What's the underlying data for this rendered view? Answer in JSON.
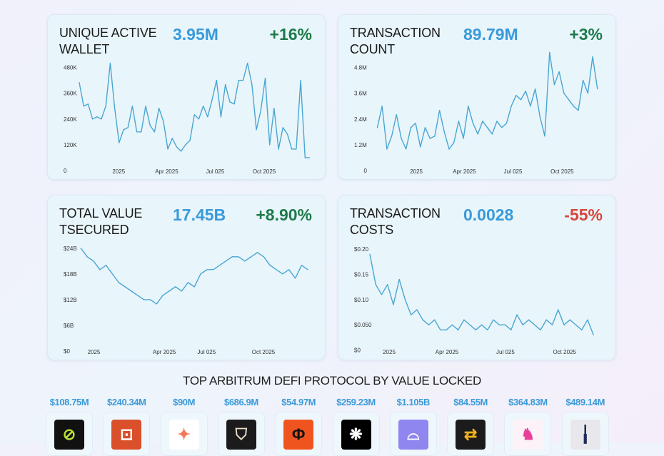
{
  "colors": {
    "value": "#3a9ad9",
    "positive": "#1e7a4a",
    "negative": "#d9453a",
    "line": "#4aa6d2"
  },
  "chart_data": [
    {
      "type": "line",
      "title": "UNIQUE ACTIVE WALLET",
      "headline": "3.95M",
      "change": "+16%",
      "change_dir": "positive",
      "ylim": [
        0,
        505
      ],
      "xlim": [
        -74,
        360
      ],
      "x_unit": "days since 2025-01-01",
      "y_ticks": [
        {
          "label": "0",
          "value": 0
        },
        {
          "label": "120K",
          "value": 120
        },
        {
          "label": "240K",
          "value": 240
        },
        {
          "label": "360K",
          "value": 360
        },
        {
          "label": "480K",
          "value": 480
        }
      ],
      "x_ticks": [
        {
          "label": "2025",
          "day": 0
        },
        {
          "label": "Apr 2025",
          "day": 90
        },
        {
          "label": "Jul 025",
          "day": 181
        },
        {
          "label": "Oct 2025",
          "day": 273
        }
      ],
      "x_range": [
        -74,
        358
      ],
      "values": [
        410,
        300,
        310,
        240,
        250,
        240,
        300,
        500,
        290,
        130,
        190,
        200,
        300,
        180,
        180,
        300,
        210,
        180,
        290,
        230,
        100,
        150,
        110,
        90,
        120,
        140,
        260,
        240,
        300,
        250,
        330,
        420,
        250,
        400,
        320,
        310,
        420,
        420,
        500,
        400,
        190,
        280,
        430,
        120,
        290,
        100,
        200,
        170,
        100,
        100,
        420,
        60,
        60
      ]
    },
    {
      "type": "line",
      "title": "TRANSACTION COUNT",
      "headline": "89.79M",
      "change": "+3%",
      "change_dir": "positive",
      "ylim": [
        0,
        5.05
      ],
      "xlim": [
        -87,
        346
      ],
      "x_unit": "days since 2025-01-01",
      "y_ticks": [
        {
          "label": "0",
          "value": 0
        },
        {
          "label": "1.2M",
          "value": 1.2
        },
        {
          "label": "2.4M",
          "value": 2.4
        },
        {
          "label": "3.6M",
          "value": 3.6
        },
        {
          "label": "4.8M",
          "value": 4.8
        }
      ],
      "x_ticks": [
        {
          "label": "2025",
          "day": 0
        },
        {
          "label": "Apr 2025",
          "day": 90
        },
        {
          "label": "Jul 025",
          "day": 181
        },
        {
          "label": "Oct 2025",
          "day": 273
        }
      ],
      "x_range": [
        -73,
        339
      ],
      "values": [
        2.0,
        3.0,
        1.0,
        1.6,
        2.6,
        1.5,
        1.0,
        2.0,
        2.2,
        1.1,
        2.0,
        1.5,
        1.6,
        2.8,
        1.8,
        1.0,
        1.3,
        2.3,
        1.5,
        3.0,
        2.2,
        1.7,
        2.3,
        2.0,
        1.7,
        2.3,
        2.0,
        2.2,
        3.0,
        3.5,
        3.3,
        3.7,
        3.0,
        3.8,
        2.5,
        1.6,
        5.5,
        4.0,
        4.6,
        3.6,
        3.3,
        3.0,
        2.8,
        4.2,
        3.6,
        5.3,
        3.8
      ]
    },
    {
      "type": "line",
      "title": "TOTAL VALUE TSECURED",
      "headline": "17.45B",
      "change": "+8.90%",
      "change_dir": "positive",
      "ylim": [
        0,
        25.3
      ],
      "xlim": [
        -67,
        360
      ],
      "x_unit": "days since 2025-01-01",
      "y_ticks": [
        {
          "label": "$0",
          "value": 0
        },
        {
          "label": "$6B",
          "value": 6
        },
        {
          "label": "$12B",
          "value": 12
        },
        {
          "label": "$18B",
          "value": 18
        },
        {
          "label": "$24B",
          "value": 24
        }
      ],
      "x_ticks": [
        {
          "label": "2025",
          "day": -40
        },
        {
          "label": "Apr 2025",
          "day": 90
        },
        {
          "label": "Jul 025",
          "day": 168
        },
        {
          "label": "Oct 2025",
          "day": 273
        }
      ],
      "x_range": [
        -64,
        355
      ],
      "values": [
        24,
        22,
        21,
        19,
        20,
        18,
        16,
        15,
        14,
        13,
        12,
        12,
        11,
        13,
        14,
        15,
        14,
        16,
        15,
        18,
        19,
        19,
        20,
        21,
        22,
        22,
        21,
        22,
        23,
        22,
        20,
        19,
        18,
        19,
        17,
        20,
        19
      ]
    },
    {
      "type": "line",
      "title": "TRANSACTION COSTS",
      "headline": "0.0028",
      "change": "-55%",
      "change_dir": "negative",
      "ylim": [
        -0.002,
        0.213
      ],
      "xlim": [
        -30,
        330
      ],
      "x_unit": "days since 2025-01-01",
      "y_ticks": [
        {
          "label": "$0",
          "value": 0
        },
        {
          "label": "$0.050",
          "value": 0.05
        },
        {
          "label": "$0.10",
          "value": 0.1
        },
        {
          "label": "$0.15",
          "value": 0.15
        },
        {
          "label": "$0.20",
          "value": 0.2
        }
      ],
      "x_ticks": [
        {
          "label": "2025",
          "day": 0
        },
        {
          "label": "Apr 2025",
          "day": 90
        },
        {
          "label": "Jul 025",
          "day": 181
        },
        {
          "label": "Oct 2025",
          "day": 273
        }
      ],
      "x_range": [
        -30,
        318
      ],
      "values": [
        0.19,
        0.13,
        0.11,
        0.13,
        0.09,
        0.14,
        0.1,
        0.07,
        0.08,
        0.06,
        0.05,
        0.06,
        0.04,
        0.04,
        0.05,
        0.04,
        0.06,
        0.05,
        0.04,
        0.05,
        0.04,
        0.06,
        0.05,
        0.05,
        0.04,
        0.07,
        0.05,
        0.06,
        0.05,
        0.04,
        0.06,
        0.05,
        0.08,
        0.05,
        0.06,
        0.05,
        0.04,
        0.06,
        0.03
      ]
    }
  ],
  "protocols": {
    "title": "TOP ARBITRUM DEFI PROTOCOL BY VALUE LOCKED",
    "items": [
      {
        "value": "$108.75M",
        "icon": "green-stripes-logo",
        "bg": "#111",
        "fg": "#b9e03a",
        "glyph": "⊘"
      },
      {
        "value": "$240.34M",
        "icon": "orange-box-logo",
        "bg": "#d9502b",
        "fg": "#fff",
        "glyph": "⊡"
      },
      {
        "value": "$90M",
        "icon": "star-logo",
        "bg": "#fff",
        "fg": "#f07a5a",
        "glyph": "✦"
      },
      {
        "value": "$686.9M",
        "icon": "shield-chevron-logo",
        "bg": "#1b1b1b",
        "fg": "#e8dcc8",
        "glyph": "⛉"
      },
      {
        "value": "$54.97M",
        "icon": "orange-bracket-logo",
        "bg": "#f0541e",
        "fg": "#111",
        "glyph": "Ф"
      },
      {
        "value": "$259.23M",
        "icon": "wolf-logo",
        "bg": "#000",
        "fg": "#fff",
        "glyph": "❋"
      },
      {
        "value": "$1.105B",
        "icon": "purple-arch-logo",
        "bg": "#8f86f0",
        "fg": "#fff",
        "glyph": "⌓"
      },
      {
        "value": "$84.55M",
        "icon": "yellow-arrows-logo",
        "bg": "#1b1b1b",
        "fg": "#f3b21c",
        "glyph": "⇄"
      },
      {
        "value": "$364.83M",
        "icon": "unicorn-logo",
        "bg": "#fdf2f8",
        "fg": "#e83e9a",
        "glyph": "♞"
      },
      {
        "value": "$489.14M",
        "icon": "gauge-logo",
        "bg": "#e8e8ec",
        "fg": "#1f2d5a",
        "glyph": "╽"
      }
    ]
  }
}
